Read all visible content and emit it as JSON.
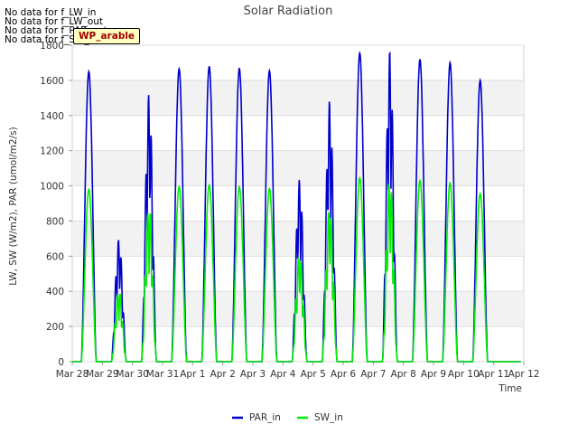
{
  "notes": [
    "No data for f_LW_in",
    "No data for f_LW_out",
    "No data for f_PAR_out",
    "No data for f_SW_out"
  ],
  "badge": "WP_arable",
  "chart_data": {
    "type": "line",
    "title": "Solar Radiation",
    "xlabel": "Time",
    "ylabel": "LW, SW (W/m2), PAR (umol/m2/s)",
    "ylim": [
      0,
      1800
    ],
    "yticks": [
      0,
      200,
      400,
      600,
      800,
      1000,
      1200,
      1400,
      1600,
      1800
    ],
    "xlim": [
      0,
      15
    ],
    "xticks": [
      {
        "x": 0,
        "label": "Mar 28"
      },
      {
        "x": 1,
        "label": "Mar 29"
      },
      {
        "x": 2,
        "label": "Mar 30"
      },
      {
        "x": 3,
        "label": "Mar 31"
      },
      {
        "x": 4,
        "label": "Apr 1"
      },
      {
        "x": 5,
        "label": "Apr 2"
      },
      {
        "x": 6,
        "label": "Apr 3"
      },
      {
        "x": 7,
        "label": "Apr 4"
      },
      {
        "x": 8,
        "label": "Apr 5"
      },
      {
        "x": 9,
        "label": "Apr 6"
      },
      {
        "x": 10,
        "label": "Apr 7"
      },
      {
        "x": 11,
        "label": "Apr 8"
      },
      {
        "x": 12,
        "label": "Apr 9"
      },
      {
        "x": 13,
        "label": "Apr 10"
      },
      {
        "x": 14,
        "label": "Apr 11"
      },
      {
        "x": 15,
        "label": "Apr 12"
      }
    ],
    "grid": "horizontal bands",
    "legend": "bottom-center",
    "series": [
      {
        "name": "PAR_in",
        "color": "#0000cc",
        "days": [
          {
            "day": 0,
            "peak": 1650
          },
          {
            "day": 1,
            "peak": 700,
            "cloudy": true
          },
          {
            "day": 2,
            "peak": 1530,
            "cloudy": true
          },
          {
            "day": 3,
            "peak": 1665
          },
          {
            "day": 4,
            "peak": 1680
          },
          {
            "day": 5,
            "peak": 1670
          },
          {
            "day": 6,
            "peak": 1655
          },
          {
            "day": 7,
            "peak": 1040,
            "cloudy": true
          },
          {
            "day": 8,
            "peak": 1490,
            "cloudy": true
          },
          {
            "day": 9,
            "peak": 1755
          },
          {
            "day": 10,
            "peak": 1775,
            "cloudy": true
          },
          {
            "day": 11,
            "peak": 1720
          },
          {
            "day": 12,
            "peak": 1700
          },
          {
            "day": 13,
            "peak": 1600
          }
        ]
      },
      {
        "name": "SW_in",
        "color": "#00ee00",
        "days": [
          {
            "day": 0,
            "peak": 980
          },
          {
            "day": 1,
            "peak": 410,
            "cloudy": true
          },
          {
            "day": 2,
            "peak": 900,
            "cloudy": true
          },
          {
            "day": 3,
            "peak": 995
          },
          {
            "day": 4,
            "peak": 1005
          },
          {
            "day": 5,
            "peak": 995
          },
          {
            "day": 6,
            "peak": 985
          },
          {
            "day": 7,
            "peak": 620,
            "cloudy": true
          },
          {
            "day": 8,
            "peak": 890,
            "cloudy": true
          },
          {
            "day": 9,
            "peak": 1045
          },
          {
            "day": 10,
            "peak": 1055,
            "cloudy": true
          },
          {
            "day": 11,
            "peak": 1030
          },
          {
            "day": 12,
            "peak": 1015
          },
          {
            "day": 13,
            "peak": 955
          }
        ]
      }
    ],
    "day_start": 0.3,
    "day_end": 0.8
  }
}
